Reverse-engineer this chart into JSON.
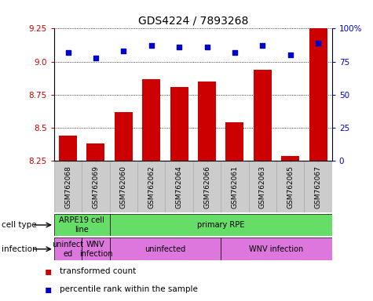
{
  "title": "GDS4224 / 7893268",
  "samples": [
    "GSM762068",
    "GSM762069",
    "GSM762060",
    "GSM762062",
    "GSM762064",
    "GSM762066",
    "GSM762061",
    "GSM762063",
    "GSM762065",
    "GSM762067"
  ],
  "transformed_counts": [
    8.44,
    8.38,
    8.62,
    8.87,
    8.81,
    8.85,
    8.54,
    8.94,
    8.29,
    9.25
  ],
  "percentile_ranks": [
    82,
    78,
    83,
    87,
    86,
    86,
    82,
    87,
    80,
    89
  ],
  "ylim_left": [
    8.25,
    9.25
  ],
  "ylim_right": [
    0,
    100
  ],
  "yticks_left": [
    8.25,
    8.5,
    8.75,
    9.0,
    9.25
  ],
  "yticks_right": [
    0,
    25,
    50,
    75,
    100
  ],
  "ytick_labels_right": [
    "0",
    "25",
    "50",
    "75",
    "100%"
  ],
  "bar_color": "#cc0000",
  "dot_color": "#0000cc",
  "bar_bottom": 8.25,
  "cell_type_groups": [
    {
      "label": "ARPE19 cell\nline",
      "start": 0,
      "end": 2,
      "color": "#66dd66"
    },
    {
      "label": "primary RPE",
      "start": 2,
      "end": 10,
      "color": "#66dd66"
    }
  ],
  "infection_groups": [
    {
      "label": "uninfect\ned",
      "start": 0,
      "end": 1,
      "color": "#dd77dd"
    },
    {
      "label": "WNV\ninfection",
      "start": 1,
      "end": 2,
      "color": "#dd77dd"
    },
    {
      "label": "uninfected",
      "start": 2,
      "end": 6,
      "color": "#dd77dd"
    },
    {
      "label": "WNV infection",
      "start": 6,
      "end": 10,
      "color": "#dd77dd"
    }
  ],
  "legend_items": [
    {
      "label": "transformed count",
      "color": "#cc0000"
    },
    {
      "label": "percentile rank within the sample",
      "color": "#0000cc"
    }
  ],
  "tick_label_color_left": "#cc0000",
  "tick_label_color_right": "#0000cc",
  "xtick_bg_color": "#cccccc",
  "xtick_edge_color": "#aaaaaa"
}
